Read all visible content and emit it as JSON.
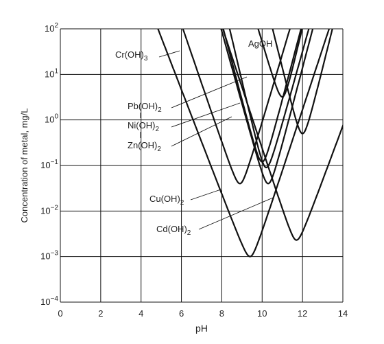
{
  "chart_data": {
    "type": "line",
    "title": "",
    "xlabel": "pH",
    "ylabel": "Concentration of metal, mg/L",
    "xlim": [
      0,
      14
    ],
    "ylim": [
      0.0001,
      100
    ],
    "yscale": "log",
    "grid": true,
    "x_ticks": [
      "0",
      "2",
      "4",
      "6",
      "8",
      "10",
      "12",
      "14"
    ],
    "y_ticks": [
      {
        "base": "10",
        "exp": "−4"
      },
      {
        "base": "10",
        "exp": "−3"
      },
      {
        "base": "10",
        "exp": "−2"
      },
      {
        "base": "10",
        "exp": "−1"
      },
      {
        "base": "10",
        "exp": "0"
      },
      {
        "base": "10",
        "exp": "1"
      },
      {
        "base": "10",
        "exp": "2"
      }
    ],
    "series": [
      {
        "name": "Cr(OH)3",
        "vertex_pH": 8.9,
        "min_conc": 0.04,
        "slope_left": -1.3,
        "slope_right": 1.5
      },
      {
        "name": "Pb(OH)2",
        "vertex_pH": 10.3,
        "min_conc": 0.04,
        "slope_left": -1.6,
        "slope_right": 1.7
      },
      {
        "name": "Ni(OH)2",
        "vertex_pH": 10.2,
        "min_conc": 0.09,
        "slope_left": -1.9,
        "slope_right": 1.6
      },
      {
        "name": "Zn(OH)2",
        "vertex_pH": 10.0,
        "min_conc": 0.12,
        "slope_left": -1.7,
        "slope_right": 1.7
      },
      {
        "name": "Cu(OH)2",
        "vertex_pH": 9.4,
        "min_conc": 0.001,
        "slope_left": -1.15,
        "slope_right": 1.35
      },
      {
        "name": "Cd(OH)2",
        "vertex_pH": 11.7,
        "min_conc": 0.0023,
        "slope_left": -1.35,
        "slope_right": 1.2
      },
      {
        "name": "AgOH",
        "vertex_pH": 12.0,
        "min_conc": 0.5,
        "slope_left": -1.8,
        "slope_right": 1.8
      },
      {
        "name": "AgOH (upper)",
        "vertex_pH": 11.0,
        "min_conc": 3.2,
        "slope_left": -1.5,
        "slope_right": 1.9
      }
    ],
    "annotations": [
      {
        "base": "Cr(OH)",
        "sub": "3"
      },
      {
        "base": "Pb(OH)",
        "sub": "2"
      },
      {
        "base": "Ni(OH)",
        "sub": "2"
      },
      {
        "base": "Zn(OH)",
        "sub": "2"
      },
      {
        "base": "Cu(OH)",
        "sub": "2"
      },
      {
        "base": "Cd(OH)",
        "sub": "2"
      },
      {
        "base": "AgOH",
        "sub": ""
      }
    ]
  }
}
